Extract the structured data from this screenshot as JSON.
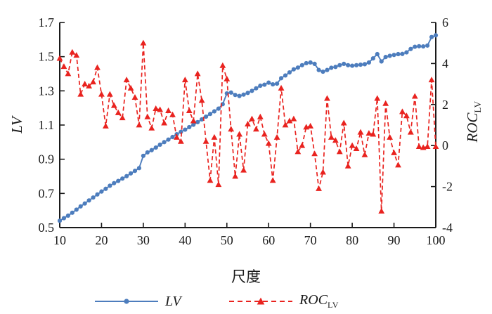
{
  "figure": {
    "left_axis_title": "LV",
    "right_axis_title_main": "ROC",
    "right_axis_title_sub": "LV",
    "x_axis_title": "尺度",
    "legend": {
      "lv_label": "LV",
      "roc_label_main": "ROC",
      "roc_label_sub": "LV"
    }
  },
  "chart_data": {
    "type": "line",
    "title": "",
    "xlabel": "尺度",
    "x_start": 10,
    "x_end": 100,
    "x_step": 1,
    "x_ticks": [
      10,
      20,
      30,
      40,
      50,
      60,
      70,
      80,
      90,
      100
    ],
    "grid": false,
    "legend_position": "bottom",
    "left_axis": {
      "label": "LV",
      "range": [
        0.5,
        1.7
      ],
      "ticks": [
        0.5,
        0.7,
        0.9,
        1.1,
        1.3,
        1.5,
        1.7
      ]
    },
    "right_axis": {
      "label": "ROC_LV",
      "range": [
        -4,
        6
      ],
      "ticks": [
        -4,
        -2,
        0,
        2,
        4,
        6
      ]
    },
    "axis_color": "#1a1a1a",
    "series": [
      {
        "name": "LV",
        "axis": "left",
        "color": "#4d7dbd",
        "marker": "circle",
        "line": "solid",
        "values": [
          0.54,
          0.555,
          0.57,
          0.587,
          0.605,
          0.624,
          0.641,
          0.659,
          0.676,
          0.694,
          0.711,
          0.727,
          0.745,
          0.76,
          0.773,
          0.787,
          0.801,
          0.817,
          0.832,
          0.848,
          0.92,
          0.94,
          0.953,
          0.968,
          0.985,
          1.0,
          1.015,
          1.03,
          1.046,
          1.06,
          1.073,
          1.088,
          1.102,
          1.117,
          1.133,
          1.149,
          1.165,
          1.18,
          1.196,
          1.222,
          1.285,
          1.29,
          1.276,
          1.27,
          1.278,
          1.288,
          1.3,
          1.315,
          1.33,
          1.336,
          1.348,
          1.338,
          1.342,
          1.374,
          1.39,
          1.408,
          1.426,
          1.436,
          1.45,
          1.462,
          1.466,
          1.458,
          1.422,
          1.412,
          1.422,
          1.435,
          1.44,
          1.45,
          1.458,
          1.45,
          1.447,
          1.45,
          1.453,
          1.456,
          1.466,
          1.49,
          1.515,
          1.472,
          1.498,
          1.505,
          1.51,
          1.515,
          1.516,
          1.525,
          1.545,
          1.558,
          1.561,
          1.56,
          1.565,
          1.615,
          1.625
        ]
      },
      {
        "name": "ROC_LV",
        "axis": "right",
        "color": "#e9231f",
        "marker": "triangle",
        "line": "dashed",
        "values": [
          4.25,
          3.85,
          3.5,
          4.55,
          4.4,
          2.5,
          3.0,
          2.9,
          3.1,
          3.8,
          2.5,
          0.95,
          2.5,
          1.95,
          1.6,
          1.35,
          3.2,
          2.8,
          2.35,
          1.0,
          5.0,
          1.4,
          0.85,
          1.8,
          1.75,
          1.1,
          1.7,
          1.5,
          0.4,
          0.2,
          3.2,
          1.7,
          1.2,
          3.5,
          2.2,
          0.2,
          -1.7,
          0.4,
          -1.9,
          3.9,
          3.25,
          0.8,
          -1.5,
          0.55,
          -1.2,
          1.05,
          1.3,
          0.8,
          1.4,
          0.55,
          0.1,
          -1.7,
          0.4,
          2.8,
          1.0,
          1.2,
          1.3,
          -0.3,
          0.0,
          0.9,
          0.95,
          -0.4,
          -2.1,
          -1.3,
          2.3,
          0.4,
          0.25,
          -0.3,
          1.1,
          -1.0,
          0.0,
          -0.15,
          0.65,
          -0.45,
          0.6,
          0.55,
          2.3,
          -3.2,
          2.05,
          0.4,
          -0.35,
          -0.95,
          1.65,
          1.45,
          0.65,
          2.4,
          -0.05,
          -0.1,
          -0.05,
          3.2,
          -0.05
        ]
      }
    ]
  }
}
